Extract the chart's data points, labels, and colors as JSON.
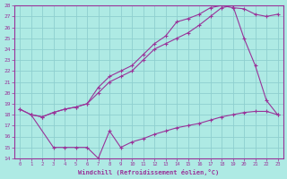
{
  "xlabel": "Windchill (Refroidissement éolien,°C)",
  "xlim": [
    -0.5,
    23.5
  ],
  "ylim": [
    14,
    28
  ],
  "yticks": [
    14,
    15,
    16,
    17,
    18,
    19,
    20,
    21,
    22,
    23,
    24,
    25,
    26,
    27,
    28
  ],
  "xticks": [
    0,
    1,
    2,
    3,
    4,
    5,
    6,
    7,
    8,
    9,
    10,
    11,
    12,
    13,
    14,
    15,
    16,
    17,
    18,
    19,
    20,
    21,
    22,
    23
  ],
  "bg_color": "#aeeae4",
  "grid_color": "#8ecfcf",
  "line_color": "#993399",
  "line1_x": [
    0,
    1,
    2,
    3,
    4,
    5,
    6,
    7,
    8,
    9,
    10,
    11,
    12,
    13,
    14,
    15,
    16,
    17,
    18,
    19,
    20,
    21,
    22,
    23
  ],
  "line1_y": [
    18.5,
    18.0,
    17.8,
    18.2,
    18.5,
    18.7,
    19.0,
    20.5,
    21.5,
    22.0,
    22.5,
    23.5,
    24.5,
    25.2,
    26.5,
    26.8,
    27.2,
    27.8,
    28.0,
    27.8,
    27.7,
    27.2,
    27.0,
    27.2
  ],
  "line2_x": [
    0,
    1,
    2,
    3,
    4,
    5,
    6,
    7,
    8,
    9,
    10,
    11,
    12,
    13,
    14,
    15,
    16,
    17,
    18,
    19,
    20,
    21,
    22,
    23
  ],
  "line2_y": [
    18.5,
    18.0,
    17.8,
    18.2,
    18.5,
    18.7,
    19.0,
    20.0,
    21.0,
    21.5,
    22.0,
    23.0,
    24.0,
    24.5,
    25.0,
    25.5,
    26.2,
    27.0,
    27.8,
    28.0,
    25.0,
    22.5,
    19.3,
    18.0
  ],
  "line3_x": [
    1,
    3,
    4,
    5,
    6,
    7,
    8,
    9,
    10,
    11,
    12,
    13,
    14,
    15,
    16,
    17,
    18,
    19,
    20,
    21,
    22,
    23
  ],
  "line3_y": [
    18.0,
    15.0,
    15.0,
    15.0,
    15.0,
    14.0,
    16.5,
    15.0,
    15.5,
    15.8,
    16.2,
    16.5,
    16.8,
    17.0,
    17.2,
    17.5,
    17.8,
    18.0,
    18.2,
    18.3,
    18.3,
    18.0
  ]
}
